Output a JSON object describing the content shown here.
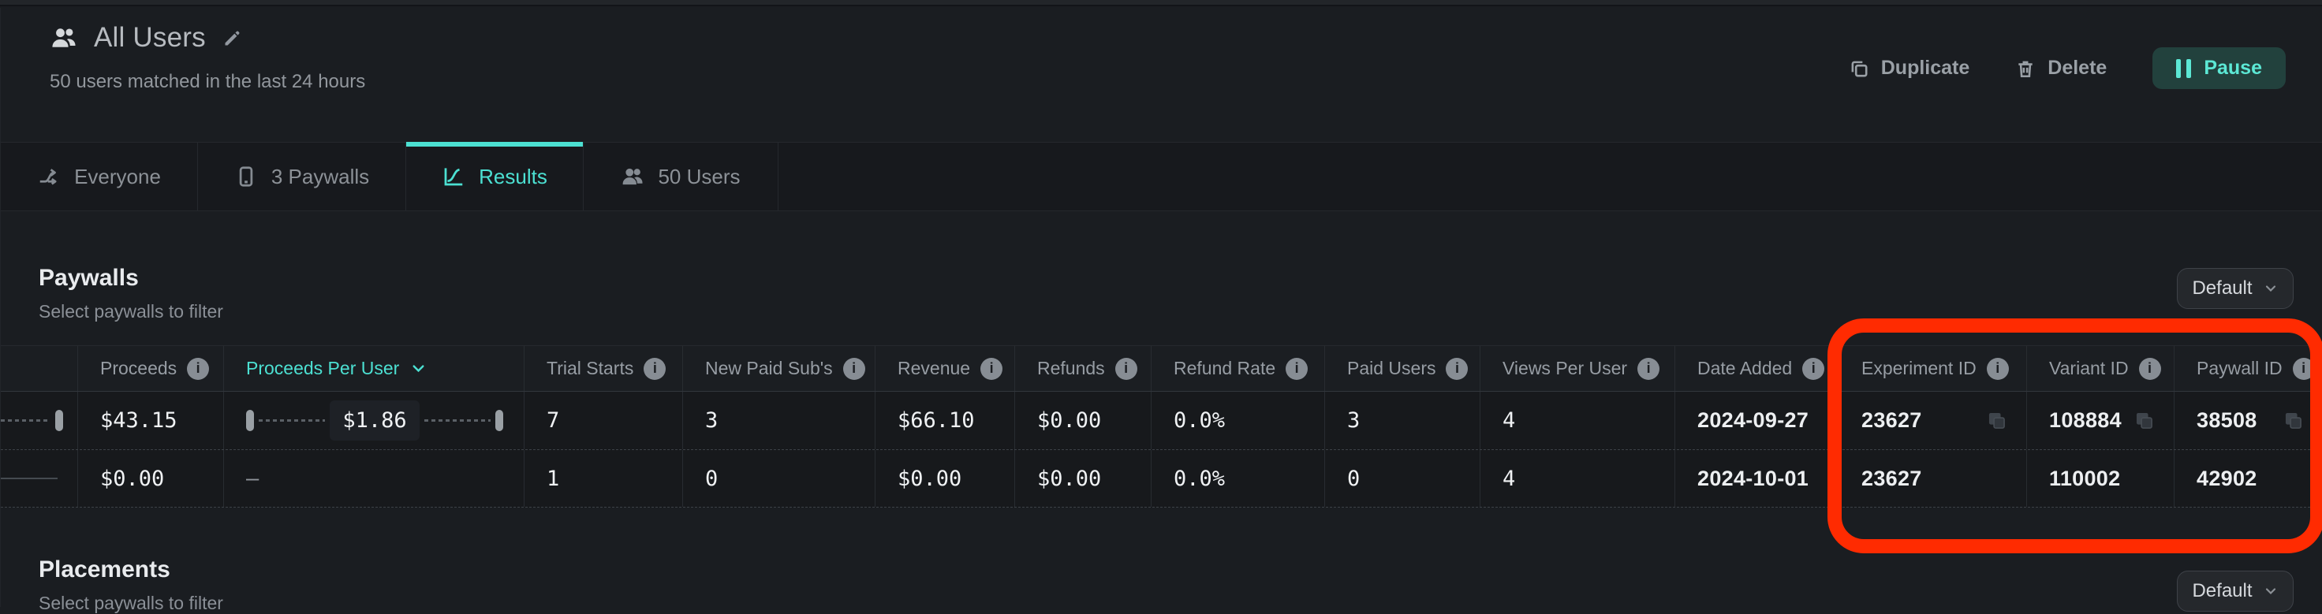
{
  "header": {
    "title": "All Users",
    "subtitle": "50 users matched in the last 24 hours",
    "actions": {
      "duplicate": "Duplicate",
      "delete": "Delete",
      "pause": "Pause"
    }
  },
  "tabs": [
    {
      "label": "Everyone",
      "icon": "split-arrows-icon",
      "active": false
    },
    {
      "label": "3 Paywalls",
      "icon": "phone-icon",
      "active": false
    },
    {
      "label": "Results",
      "icon": "chart-icon",
      "active": true
    },
    {
      "label": "50 Users",
      "icon": "users-icon",
      "active": false
    }
  ],
  "paywalls_section": {
    "title": "Paywalls",
    "subtitle": "Select paywalls to filter",
    "filter_label": "Default"
  },
  "placements_section": {
    "title": "Placements",
    "subtitle": "Select paywalls to filter",
    "filter_label": "Default"
  },
  "table": {
    "columns": [
      {
        "label": "",
        "info": false
      },
      {
        "label": "Proceeds",
        "info": true
      },
      {
        "label": "Proceeds Per User",
        "info": false,
        "sorted": true
      },
      {
        "label": "Trial Starts",
        "info": true
      },
      {
        "label": "New Paid Sub's",
        "info": true
      },
      {
        "label": "Revenue",
        "info": true
      },
      {
        "label": "Refunds",
        "info": true
      },
      {
        "label": "Refund Rate",
        "info": true
      },
      {
        "label": "Paid Users",
        "info": true
      },
      {
        "label": "Views Per User",
        "info": true
      },
      {
        "label": "Date Added",
        "info": true
      },
      {
        "label": "Experiment ID",
        "info": true
      },
      {
        "label": "Variant ID",
        "info": true
      },
      {
        "label": "Paywall ID",
        "info": true
      }
    ],
    "rows": [
      {
        "cells": [
          {
            "type": "slider_edge"
          },
          {
            "type": "mono",
            "value": "$43.15"
          },
          {
            "type": "slider_range",
            "value": "$1.86"
          },
          {
            "type": "mono",
            "value": "7"
          },
          {
            "type": "mono",
            "value": "3"
          },
          {
            "type": "mono",
            "value": "$66.10"
          },
          {
            "type": "mono",
            "value": "$0.00"
          },
          {
            "type": "mono",
            "value": "0.0%"
          },
          {
            "type": "mono",
            "value": "3"
          },
          {
            "type": "mono",
            "value": "4"
          },
          {
            "type": "text",
            "value": "2024-09-27"
          },
          {
            "type": "id",
            "value": "23627",
            "copy": true
          },
          {
            "type": "id",
            "value": "108884",
            "copy": true
          },
          {
            "type": "id",
            "value": "38508",
            "copy": true
          }
        ]
      },
      {
        "cells": [
          {
            "type": "slider_line"
          },
          {
            "type": "mono",
            "value": "$0.00"
          },
          {
            "type": "dash",
            "value": "–"
          },
          {
            "type": "mono",
            "value": "1"
          },
          {
            "type": "mono",
            "value": "0"
          },
          {
            "type": "mono",
            "value": "$0.00"
          },
          {
            "type": "mono",
            "value": "$0.00"
          },
          {
            "type": "mono",
            "value": "0.0%"
          },
          {
            "type": "mono",
            "value": "0"
          },
          {
            "type": "mono",
            "value": "4"
          },
          {
            "type": "text",
            "value": "2024-10-01"
          },
          {
            "type": "id",
            "value": "23627",
            "copy": false
          },
          {
            "type": "id",
            "value": "110002",
            "copy": false
          },
          {
            "type": "id",
            "value": "42902",
            "copy": false
          }
        ]
      }
    ]
  },
  "colors": {
    "accent_teal": "#4ce0d2",
    "annotation_red": "#ff2b01",
    "pause_bg": "#22413d",
    "pause_text": "#5ce8d5",
    "background": "#1a1d21"
  }
}
